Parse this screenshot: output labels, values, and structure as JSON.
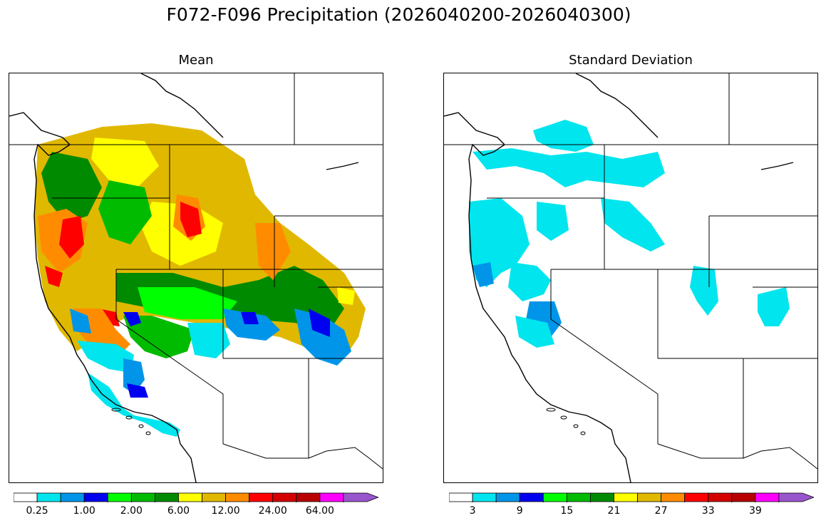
{
  "suptitle": "F072-F096 Precipitation (2026040200-2026040300)",
  "panels": {
    "mean": {
      "title": "Mean",
      "colorbar": {
        "colors": [
          "#ffffff",
          "#00e5ee",
          "#0095e8",
          "#0000f0",
          "#00ff00",
          "#00bb00",
          "#008a00",
          "#ffff00",
          "#e0b800",
          "#ff8c00",
          "#ff0000",
          "#d40000",
          "#b80000",
          "#ff00ff",
          "#9955cc"
        ],
        "extend": "max",
        "tick_labels": [
          "0.25",
          "1.00",
          "2.00",
          "6.00",
          "12.00",
          "24.00",
          "64.00"
        ]
      },
      "region_colors": [
        "#e0b800",
        "#ffff00",
        "#008a00",
        "#00bb00",
        "#ff8c00",
        "#ff0000",
        "#00ff00",
        "#00e5ee",
        "#0095e8",
        "#0000f0",
        "#ffffff"
      ]
    },
    "stddev": {
      "title": "Standard Deviation",
      "colorbar": {
        "colors": [
          "#ffffff",
          "#00e5ee",
          "#0095e8",
          "#0000f0",
          "#00ff00",
          "#00bb00",
          "#008a00",
          "#ffff00",
          "#e0b800",
          "#ff8c00",
          "#ff0000",
          "#d40000",
          "#b80000",
          "#ff00ff",
          "#9955cc"
        ],
        "extend": "max",
        "tick_labels": [
          "3",
          "9",
          "15",
          "21",
          "27",
          "33",
          "39"
        ]
      },
      "region_colors": [
        "#00e5ee",
        "#0095e8",
        "#ffffff"
      ]
    }
  }
}
